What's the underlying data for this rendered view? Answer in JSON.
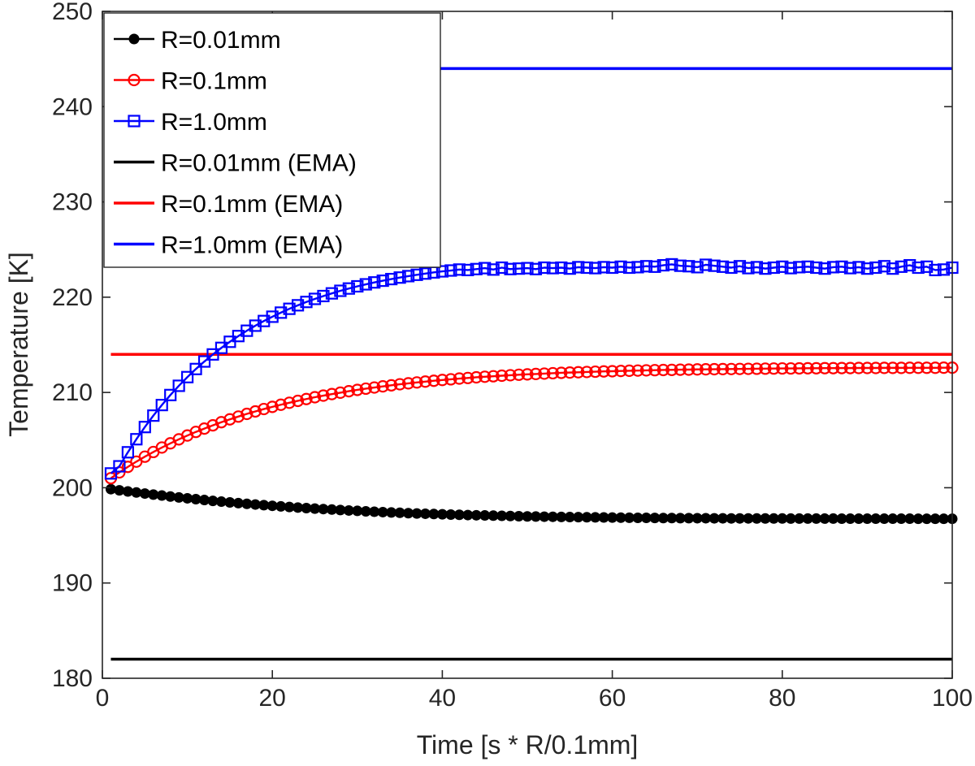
{
  "chart_data": {
    "type": "line",
    "title": "",
    "xlabel": "Time [s * R/0.1mm]",
    "ylabel": "Temperature [K]",
    "xlim": [
      0,
      100
    ],
    "ylim": [
      180,
      250
    ],
    "xticks": [
      0,
      20,
      40,
      60,
      80,
      100
    ],
    "yticks": [
      180,
      190,
      200,
      210,
      220,
      230,
      240,
      250
    ],
    "xtick_labels": [
      "0",
      "20",
      "40",
      "60",
      "80",
      "100"
    ],
    "ytick_labels": [
      "180",
      "190",
      "200",
      "210",
      "220",
      "230",
      "240",
      "250"
    ],
    "grid": false,
    "legend_position": "top-left",
    "series": [
      {
        "name": "R=0.01mm",
        "color": "#000000",
        "marker": "filled-circle",
        "x": [
          1,
          2,
          3,
          4,
          5,
          6,
          7,
          8,
          9,
          10,
          11,
          12,
          13,
          14,
          15,
          16,
          17,
          18,
          19,
          20,
          21,
          22,
          23,
          24,
          25,
          26,
          27,
          28,
          29,
          30,
          31,
          32,
          33,
          34,
          35,
          36,
          37,
          38,
          39,
          40,
          41,
          42,
          43,
          44,
          45,
          46,
          47,
          48,
          49,
          50,
          51,
          52,
          53,
          54,
          55,
          56,
          57,
          58,
          59,
          60,
          61,
          62,
          63,
          64,
          65,
          66,
          67,
          68,
          69,
          70,
          71,
          72,
          73,
          74,
          75,
          76,
          77,
          78,
          79,
          80,
          81,
          82,
          83,
          84,
          85,
          86,
          87,
          88,
          89,
          90,
          91,
          92,
          93,
          94,
          95,
          96,
          97,
          98,
          99,
          100
        ],
        "y": [
          199.85,
          199.73,
          199.61,
          199.5,
          199.39,
          199.28,
          199.18,
          199.08,
          198.98,
          198.89,
          198.8,
          198.71,
          198.62,
          198.54,
          198.46,
          198.38,
          198.31,
          198.24,
          198.17,
          198.1,
          198.04,
          197.98,
          197.92,
          197.86,
          197.81,
          197.76,
          197.71,
          197.66,
          197.61,
          197.57,
          197.52,
          197.48,
          197.44,
          197.4,
          197.37,
          197.33,
          197.3,
          197.27,
          197.24,
          197.21,
          197.18,
          197.16,
          197.13,
          197.11,
          197.09,
          197.07,
          197.05,
          197.03,
          197.01,
          196.99,
          196.98,
          196.96,
          196.95,
          196.93,
          196.92,
          196.91,
          196.9,
          196.89,
          196.88,
          196.87,
          196.86,
          196.85,
          196.84,
          196.84,
          196.83,
          196.82,
          196.82,
          196.81,
          196.81,
          196.8,
          196.8,
          196.79,
          196.79,
          196.78,
          196.78,
          196.78,
          196.77,
          196.77,
          196.77,
          196.77,
          196.76,
          196.76,
          196.76,
          196.76,
          196.76,
          196.76,
          196.75,
          196.75,
          196.75,
          196.75,
          196.75,
          196.75,
          196.75,
          196.75,
          196.75,
          196.74,
          196.74,
          196.74,
          196.74,
          196.74
        ]
      },
      {
        "name": "R=0.1mm",
        "color": "#ff0000",
        "marker": "open-circle",
        "x": [
          1,
          2,
          3,
          4,
          5,
          6,
          7,
          8,
          9,
          10,
          11,
          12,
          13,
          14,
          15,
          16,
          17,
          18,
          19,
          20,
          21,
          22,
          23,
          24,
          25,
          26,
          27,
          28,
          29,
          30,
          31,
          32,
          33,
          34,
          35,
          36,
          37,
          38,
          39,
          40,
          41,
          42,
          43,
          44,
          45,
          46,
          47,
          48,
          49,
          50,
          51,
          52,
          53,
          54,
          55,
          56,
          57,
          58,
          59,
          60,
          61,
          62,
          63,
          64,
          65,
          66,
          67,
          68,
          69,
          70,
          71,
          72,
          73,
          74,
          75,
          76,
          77,
          78,
          79,
          80,
          81,
          82,
          83,
          84,
          85,
          86,
          87,
          88,
          89,
          90,
          91,
          92,
          93,
          94,
          95,
          96,
          97,
          98,
          99,
          100
        ],
        "y": [
          201.0,
          201.61,
          202.19,
          202.74,
          203.26,
          203.75,
          204.22,
          204.66,
          205.08,
          205.48,
          205.86,
          206.21,
          206.55,
          206.88,
          207.18,
          207.47,
          207.75,
          208.01,
          208.26,
          208.49,
          208.71,
          208.92,
          209.12,
          209.31,
          209.5,
          209.67,
          209.83,
          209.98,
          210.13,
          210.27,
          210.4,
          210.52,
          210.64,
          210.75,
          210.86,
          210.96,
          211.05,
          211.14,
          211.23,
          211.31,
          211.38,
          211.46,
          211.52,
          211.59,
          211.65,
          211.7,
          211.76,
          211.81,
          211.86,
          211.9,
          211.94,
          211.98,
          212.02,
          212.06,
          212.09,
          212.12,
          212.15,
          212.18,
          212.21,
          212.23,
          212.26,
          212.28,
          212.3,
          212.32,
          212.34,
          212.36,
          212.37,
          212.39,
          212.4,
          212.42,
          212.43,
          212.44,
          212.45,
          212.46,
          212.47,
          212.48,
          212.49,
          212.5,
          212.51,
          212.52,
          212.52,
          212.53,
          212.54,
          212.54,
          212.55,
          212.55,
          212.56,
          212.56,
          212.57,
          212.57,
          212.57,
          212.58,
          212.58,
          212.58,
          212.59,
          212.59,
          212.59,
          212.59,
          212.6,
          212.6
        ]
      },
      {
        "name": "R=1.0mm",
        "color": "#0000ff",
        "marker": "open-square",
        "x": [
          1,
          2,
          3,
          4,
          5,
          6,
          7,
          8,
          9,
          10,
          11,
          12,
          13,
          14,
          15,
          16,
          17,
          18,
          19,
          20,
          21,
          22,
          23,
          24,
          25,
          26,
          27,
          28,
          29,
          30,
          31,
          32,
          33,
          34,
          35,
          36,
          37,
          38,
          39,
          40,
          41,
          42,
          43,
          44,
          45,
          46,
          47,
          48,
          49,
          50,
          51,
          52,
          53,
          54,
          55,
          56,
          57,
          58,
          59,
          60,
          61,
          62,
          63,
          64,
          65,
          66,
          67,
          68,
          69,
          70,
          71,
          72,
          73,
          74,
          75,
          76,
          77,
          78,
          79,
          80,
          81,
          82,
          83,
          84,
          85,
          86,
          87,
          88,
          89,
          90,
          91,
          92,
          93,
          94,
          95,
          96,
          97,
          98,
          99,
          100
        ],
        "y": [
          201.5,
          202.25,
          203.72,
          205.09,
          206.37,
          207.57,
          208.68,
          209.73,
          210.7,
          211.61,
          212.46,
          213.25,
          213.99,
          214.68,
          215.32,
          215.92,
          216.48,
          217.01,
          217.5,
          217.95,
          218.38,
          218.78,
          219.15,
          219.5,
          219.82,
          220.12,
          220.4,
          220.67,
          220.91,
          221.14,
          221.35,
          221.55,
          221.73,
          221.9,
          222.06,
          222.21,
          222.35,
          222.48,
          222.6,
          222.71,
          222.8,
          222.9,
          222.85,
          222.95,
          223.05,
          222.9,
          223.1,
          222.95,
          223.0,
          223.05,
          222.95,
          223.1,
          223.05,
          223.1,
          223.0,
          223.15,
          223.1,
          223.05,
          223.15,
          223.1,
          223.2,
          223.1,
          223.15,
          223.25,
          223.2,
          223.35,
          223.45,
          223.3,
          223.25,
          223.15,
          223.4,
          223.3,
          223.2,
          223.1,
          223.25,
          223.05,
          223.15,
          223.0,
          223.1,
          223.2,
          223.05,
          223.15,
          223.2,
          223.1,
          223.0,
          223.15,
          223.2,
          223.05,
          223.15,
          223.0,
          223.1,
          223.25,
          223.0,
          223.2,
          223.35,
          223.1,
          223.2,
          222.85,
          222.9,
          223.1
        ]
      },
      {
        "name": "R=0.01mm (EMA)",
        "color": "#000000",
        "marker": "none",
        "x": [
          1,
          100
        ],
        "y": [
          182.0,
          182.0
        ]
      },
      {
        "name": "R=0.1mm (EMA)",
        "color": "#ff0000",
        "marker": "none",
        "x": [
          1,
          100
        ],
        "y": [
          214.0,
          214.0
        ]
      },
      {
        "name": "R=1.0mm (EMA)",
        "color": "#0000ff",
        "marker": "none",
        "x": [
          1,
          100
        ],
        "y": [
          244.0,
          244.0
        ]
      }
    ]
  }
}
